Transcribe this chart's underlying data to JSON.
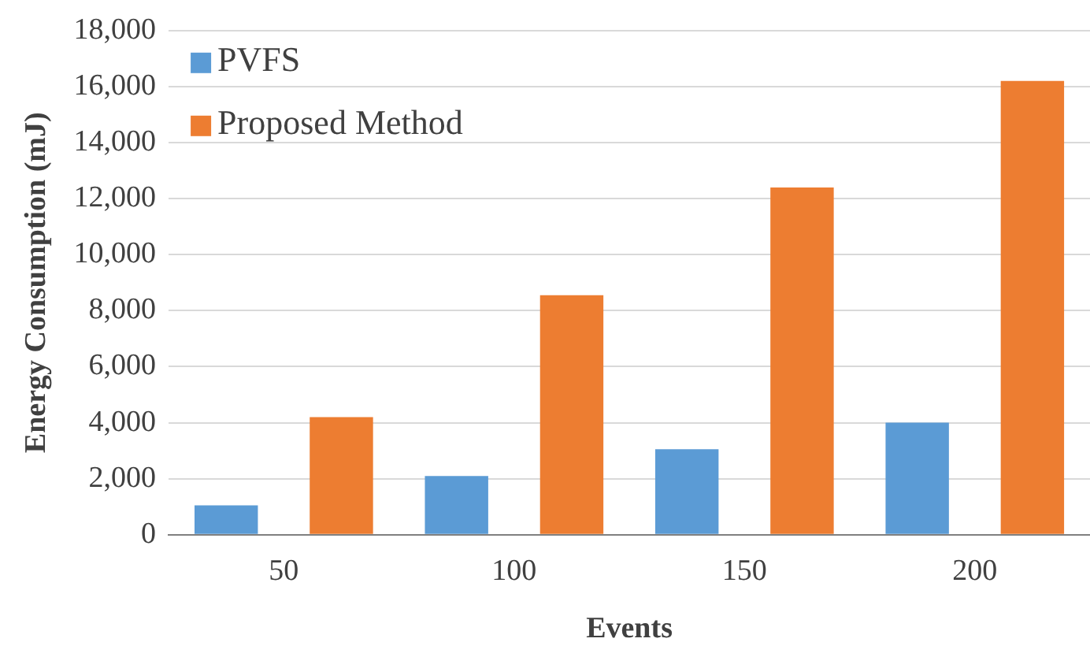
{
  "chart_data": {
    "type": "bar",
    "xlabel": "Events",
    "ylabel": "Energy Consumption (mJ)",
    "categories": [
      "50",
      "100",
      "150",
      "200"
    ],
    "series": [
      {
        "name": "PVFS",
        "color": "#5b9bd5",
        "values": [
          1050,
          2100,
          3050,
          4000
        ]
      },
      {
        "name": "Proposed Method",
        "color": "#ed7d31",
        "values": [
          4200,
          8550,
          12400,
          16200
        ]
      }
    ],
    "ylim": [
      0,
      18000
    ],
    "yticks": [
      {
        "value": 0,
        "label": "0"
      },
      {
        "value": 2000,
        "label": "2,000"
      },
      {
        "value": 4000,
        "label": "4,000"
      },
      {
        "value": 6000,
        "label": "6,000"
      },
      {
        "value": 8000,
        "label": "8,000"
      },
      {
        "value": 10000,
        "label": "10,000"
      },
      {
        "value": 12000,
        "label": "12,000"
      },
      {
        "value": 14000,
        "label": "14,000"
      },
      {
        "value": 16000,
        "label": "16,000"
      },
      {
        "value": 18000,
        "label": "18,000"
      }
    ],
    "grid": "y",
    "legend": "top left"
  }
}
